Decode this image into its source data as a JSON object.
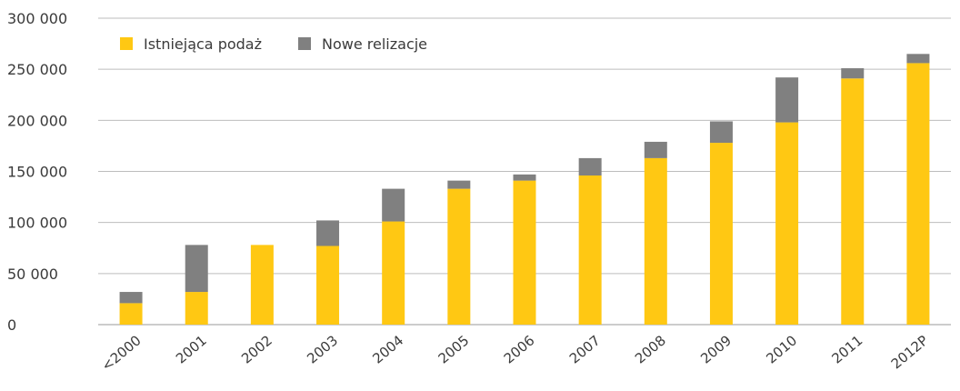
{
  "chart_data": {
    "type": "bar",
    "stacked": true,
    "categories": [
      "<2000",
      "2001",
      "2002",
      "2003",
      "2004",
      "2005",
      "2006",
      "2007",
      "2008",
      "2009",
      "2010",
      "2011",
      "2012P"
    ],
    "series": [
      {
        "name": "Istniejąca podaż",
        "color": "#FFC813",
        "values": [
          21000,
          32000,
          78000,
          77000,
          101000,
          133000,
          141000,
          146000,
          163000,
          178000,
          198000,
          241000,
          256000
        ]
      },
      {
        "name": "Nowe relizacje",
        "color": "#808080",
        "values": [
          11000,
          46000,
          0,
          25000,
          32000,
          8000,
          6000,
          17000,
          16000,
          21000,
          44000,
          10000,
          9000
        ]
      }
    ],
    "ylim": [
      0,
      300000
    ],
    "yticks": [
      0,
      50000,
      100000,
      150000,
      200000,
      250000,
      300000
    ],
    "ytick_labels": [
      "0",
      "50 000",
      "100 000",
      "150 000",
      "200 000",
      "250 000",
      "300 000"
    ],
    "grid": true,
    "legend_position": "top-left",
    "title": "",
    "xlabel": "",
    "ylabel": ""
  }
}
